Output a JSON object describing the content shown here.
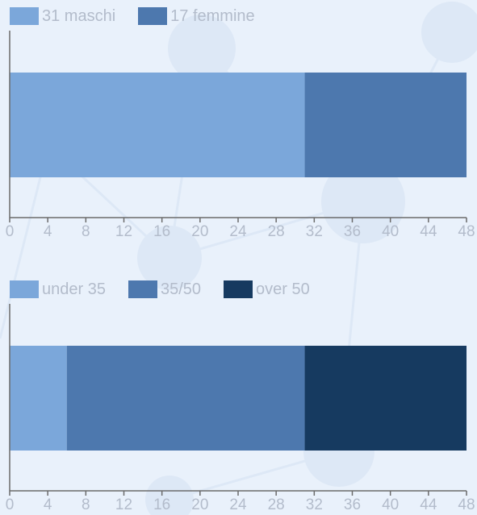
{
  "chart_data": [
    {
      "type": "bar",
      "orientation": "horizontal",
      "stacked": true,
      "series": [
        {
          "name": "31 maschi",
          "values": [
            31
          ],
          "color": "#7ba7da"
        },
        {
          "name": "17 femmine",
          "values": [
            17
          ],
          "color": "#4d78ae"
        }
      ],
      "xlim": [
        0,
        48
      ],
      "xticks": [
        "0",
        "4",
        "8",
        "12",
        "16",
        "20",
        "24",
        "28",
        "32",
        "36",
        "40",
        "44",
        "48"
      ],
      "legend": "top-left",
      "grid": false
    },
    {
      "type": "bar",
      "orientation": "horizontal",
      "stacked": true,
      "series": [
        {
          "name": "under 35",
          "values": [
            6
          ],
          "color": "#7ba7da"
        },
        {
          "name": "35/50",
          "values": [
            25
          ],
          "color": "#4d78ae"
        },
        {
          "name": "over 50",
          "values": [
            17
          ],
          "color": "#163a60"
        }
      ],
      "xlim": [
        0,
        48
      ],
      "xticks": [
        "0",
        "4",
        "8",
        "12",
        "16",
        "20",
        "24",
        "28",
        "32",
        "36",
        "40",
        "44",
        "48"
      ],
      "legend": "top-left",
      "grid": false
    }
  ]
}
